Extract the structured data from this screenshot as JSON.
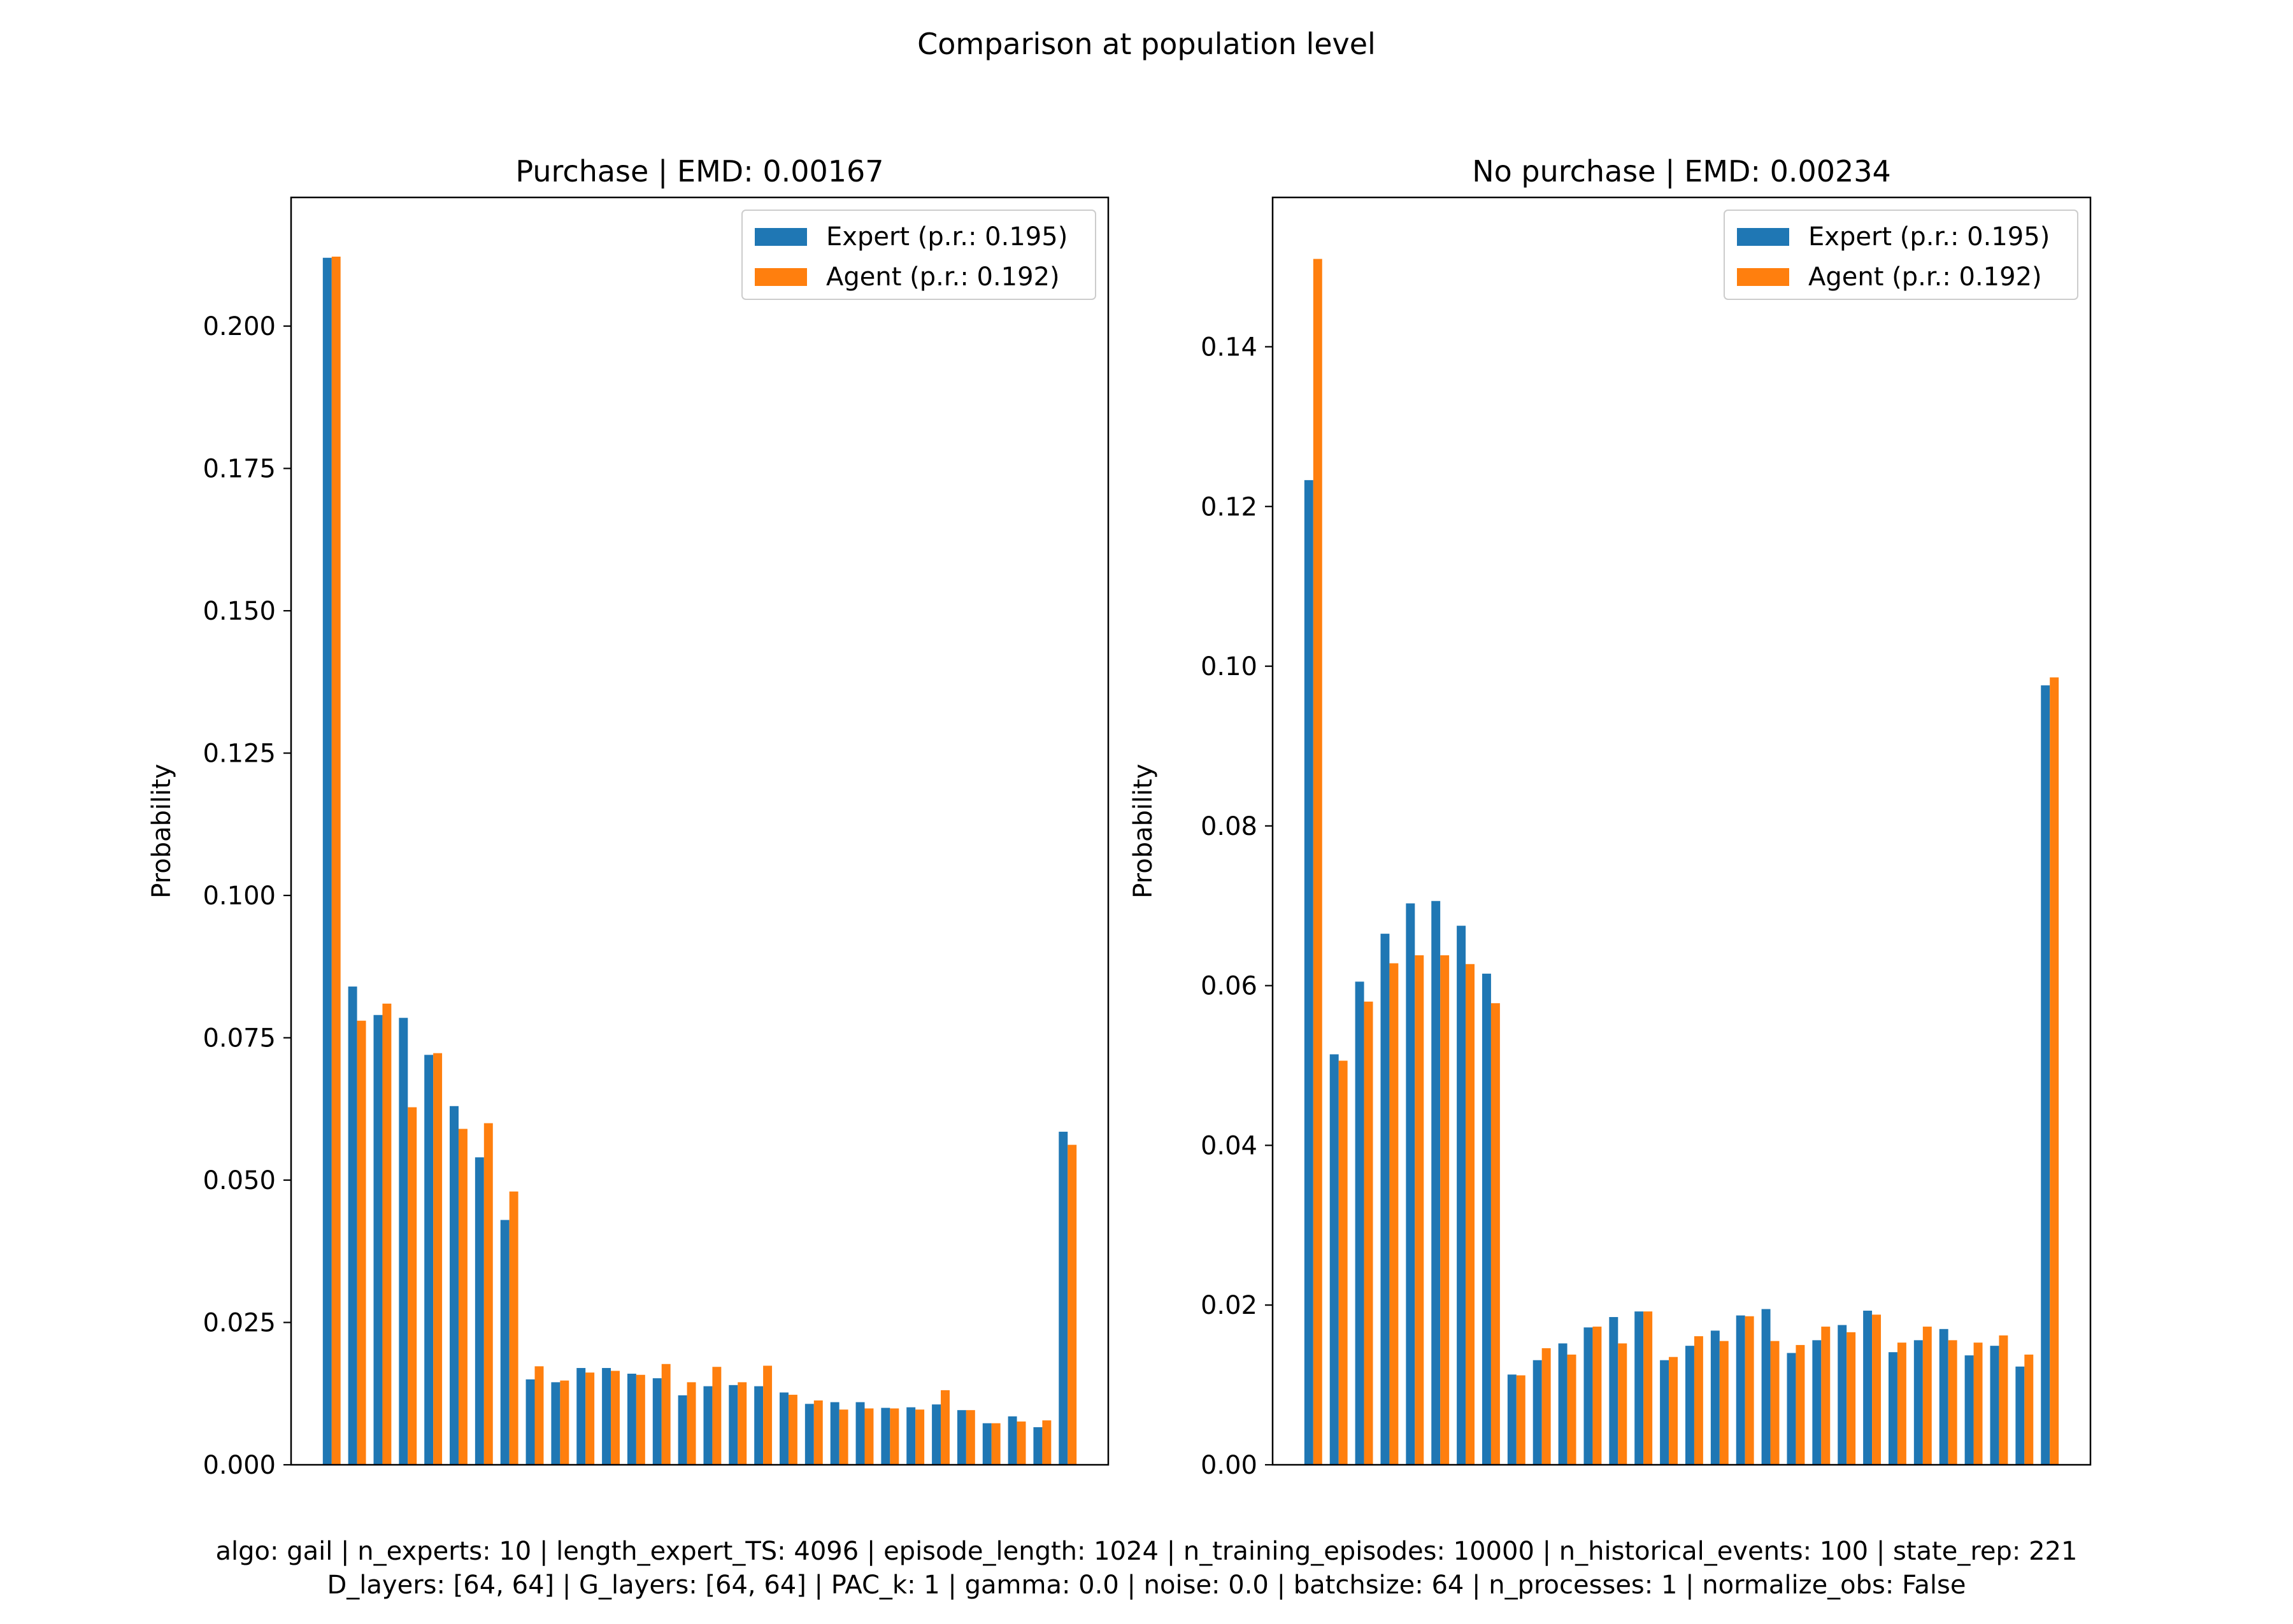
{
  "figure": {
    "suptitle": "Comparison at population level",
    "footer_line1": "algo: gail | n_experts: 10 | length_expert_TS: 4096 | episode_length: 1024 | n_training_episodes: 10000 | n_historical_events: 100 | state_rep: 221",
    "footer_line2": "D_layers: [64, 64] | G_layers: [64, 64] | PAC_k: 1 | gamma: 0.0 | noise: 0.0 | batchsize: 64 | n_processes: 1 | normalize_obs: False"
  },
  "colors": {
    "expert": "#1f77b4",
    "agent": "#ff7f0e"
  },
  "chart_data": [
    {
      "type": "bar",
      "title": "Purchase | EMD: 0.00167",
      "ylabel": "Probability",
      "xlabel": "",
      "ylim": [
        0,
        0.2226
      ],
      "yticks": [
        0.0,
        0.025,
        0.05,
        0.075,
        0.1,
        0.125,
        0.15,
        0.175,
        0.2
      ],
      "ytick_labels": [
        "0.000",
        "0.025",
        "0.050",
        "0.075",
        "0.100",
        "0.125",
        "0.150",
        "0.175",
        "0.200"
      ],
      "legend_position": "top-right",
      "grid": false,
      "series": [
        {
          "name": "Expert (p.r.: 0.195)",
          "color": "#1f77b4",
          "values": [
            0.212,
            0.084,
            0.079,
            0.0785,
            0.072,
            0.063,
            0.054,
            0.043,
            0.015,
            0.0145,
            0.017,
            0.017,
            0.016,
            0.0152,
            0.0122,
            0.0138,
            0.014,
            0.0138,
            0.0127,
            0.0107,
            0.011,
            0.011,
            0.01,
            0.0101,
            0.0106,
            0.0096,
            0.0073,
            0.0085,
            0.0066,
            0.0585
          ]
        },
        {
          "name": "Agent (p.r.: 0.192)",
          "color": "#ff7f0e",
          "values": [
            0.2122,
            0.078,
            0.081,
            0.0628,
            0.0723,
            0.059,
            0.06,
            0.048,
            0.0173,
            0.0148,
            0.0162,
            0.0165,
            0.0158,
            0.0177,
            0.0145,
            0.0172,
            0.0145,
            0.0174,
            0.0123,
            0.0113,
            0.0097,
            0.0099,
            0.0099,
            0.0097,
            0.0131,
            0.0096,
            0.0073,
            0.0076,
            0.0078,
            0.0562
          ]
        }
      ]
    },
    {
      "type": "bar",
      "title": "No purchase | EMD: 0.00234",
      "ylabel": "Probability",
      "xlabel": "",
      "ylim": [
        0,
        0.1587
      ],
      "yticks": [
        0.0,
        0.02,
        0.04,
        0.06,
        0.08,
        0.1,
        0.12,
        0.14
      ],
      "ytick_labels": [
        "0.00",
        "0.02",
        "0.04",
        "0.06",
        "0.08",
        "0.10",
        "0.12",
        "0.14"
      ],
      "legend_position": "top-right",
      "grid": false,
      "series": [
        {
          "name": "Expert (p.r.: 0.195)",
          "color": "#1f77b4",
          "values": [
            0.1233,
            0.0514,
            0.0605,
            0.0665,
            0.0703,
            0.0706,
            0.0675,
            0.0615,
            0.0113,
            0.0131,
            0.0152,
            0.0172,
            0.0185,
            0.0192,
            0.0131,
            0.0149,
            0.0168,
            0.0187,
            0.0195,
            0.014,
            0.0156,
            0.0175,
            0.0193,
            0.0141,
            0.0156,
            0.017,
            0.0137,
            0.0149,
            0.0123,
            0.0976
          ]
        },
        {
          "name": "Agent (p.r.: 0.192)",
          "color": "#ff7f0e",
          "values": [
            0.151,
            0.0506,
            0.058,
            0.0628,
            0.0638,
            0.0638,
            0.0627,
            0.0578,
            0.0112,
            0.0146,
            0.0138,
            0.0173,
            0.0152,
            0.0192,
            0.0135,
            0.0161,
            0.0155,
            0.0186,
            0.0155,
            0.015,
            0.0173,
            0.0166,
            0.0188,
            0.0153,
            0.0173,
            0.0156,
            0.0153,
            0.0162,
            0.0138,
            0.0986
          ]
        }
      ]
    }
  ]
}
